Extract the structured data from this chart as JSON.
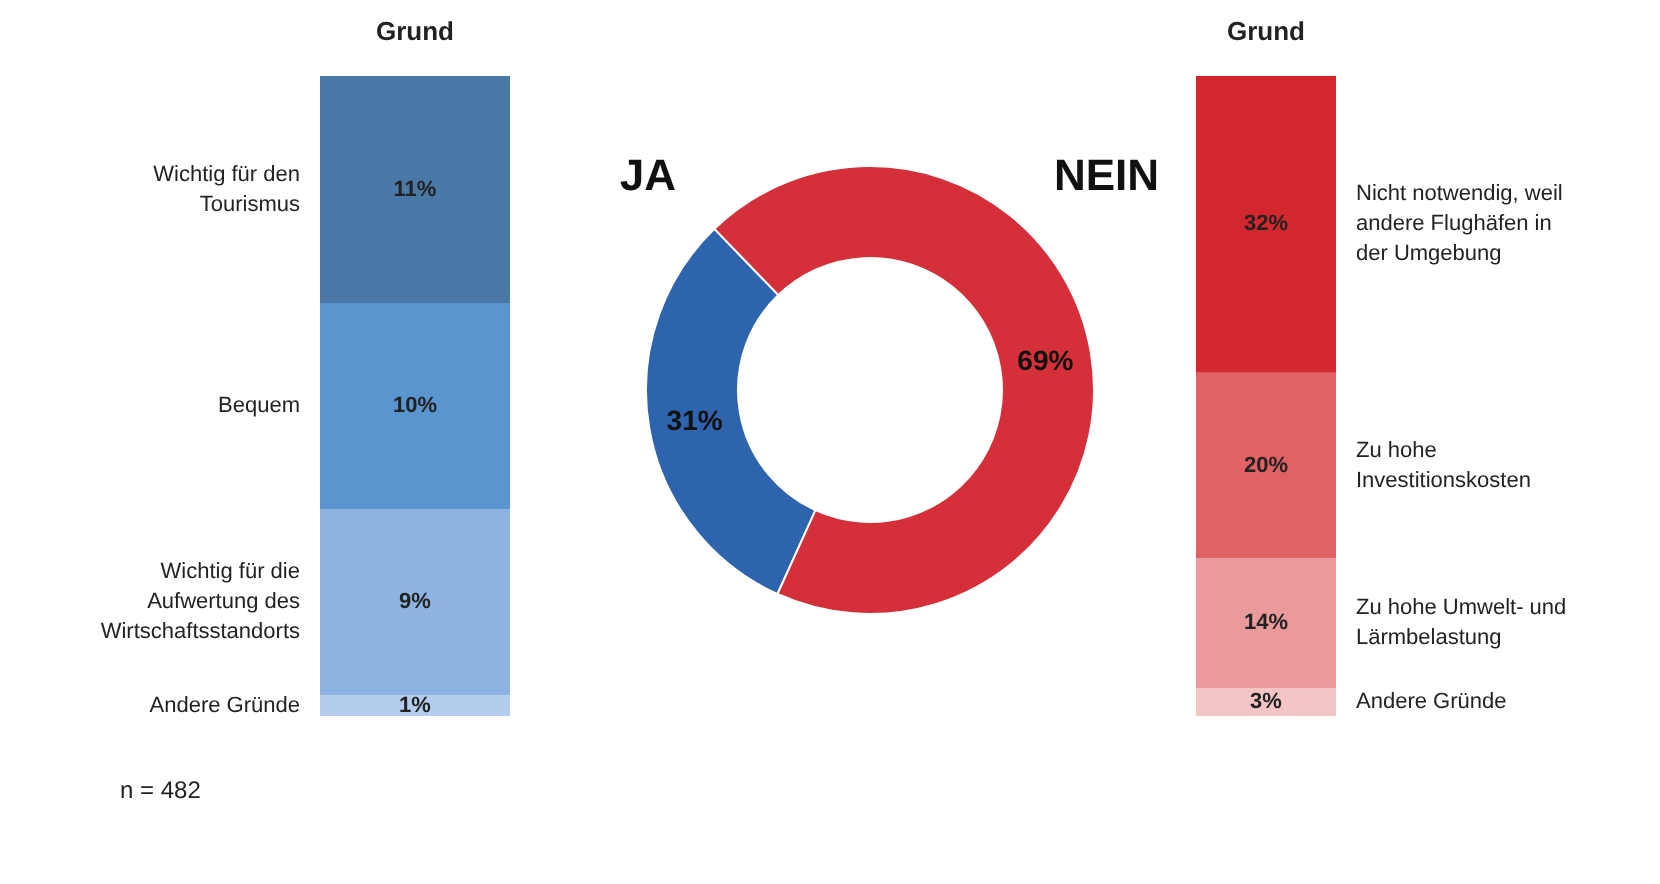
{
  "chart_data": [
    {
      "type": "bar",
      "title": "Grund",
      "stacked": true,
      "categories": [
        null
      ],
      "data_labels": true,
      "annotations": [
        "n = 482"
      ],
      "series": [
        {
          "name": "Andere Gründe",
          "color": "#b4cdef",
          "values": [
            1
          ],
          "value_labels": [
            "1%"
          ]
        },
        {
          "name": "Wichtig für die Aufwertung des Wirtschaftsstandorts",
          "color": "#8db3e2",
          "values": [
            9
          ],
          "value_labels": [
            "9%"
          ]
        },
        {
          "name": "Bequem",
          "color": "#5b95cf",
          "values": [
            10
          ],
          "value_labels": [
            "10%"
          ]
        },
        {
          "name": "Wichtig für den Tourismus",
          "color": "#4a79a8",
          "values": [
            11
          ],
          "value_labels": [
            "11%"
          ]
        }
      ]
    },
    {
      "type": "donut",
      "categories": [
        "JA",
        "NEIN"
      ],
      "values": [
        31,
        69
      ],
      "colors": [
        "#2e63ad",
        "#d5303a"
      ],
      "value_labels": [
        "31%",
        "69%"
      ],
      "data_labels": true
    },
    {
      "type": "bar",
      "title": "Grund",
      "stacked": true,
      "categories": [
        null
      ],
      "data_labels": true,
      "series": [
        {
          "name": "Andere Gründe",
          "color": "#f4c5c6",
          "values": [
            3
          ],
          "value_labels": [
            "3%"
          ]
        },
        {
          "name": "Zu hohe Umwelt- und Lärmbelastung",
          "color": "#eb9a9c",
          "values": [
            14
          ],
          "value_labels": [
            "14%"
          ]
        },
        {
          "name": "Zu hohe Investitionskosten",
          "color": "#e06265",
          "values": [
            20
          ],
          "value_labels": [
            "20%"
          ]
        },
        {
          "name": "Nicht notwendig, weil andere Flughäfen in der Umgebung",
          "color": "#d3272f",
          "values": [
            32
          ],
          "value_labels": [
            "32%"
          ]
        }
      ]
    }
  ]
}
